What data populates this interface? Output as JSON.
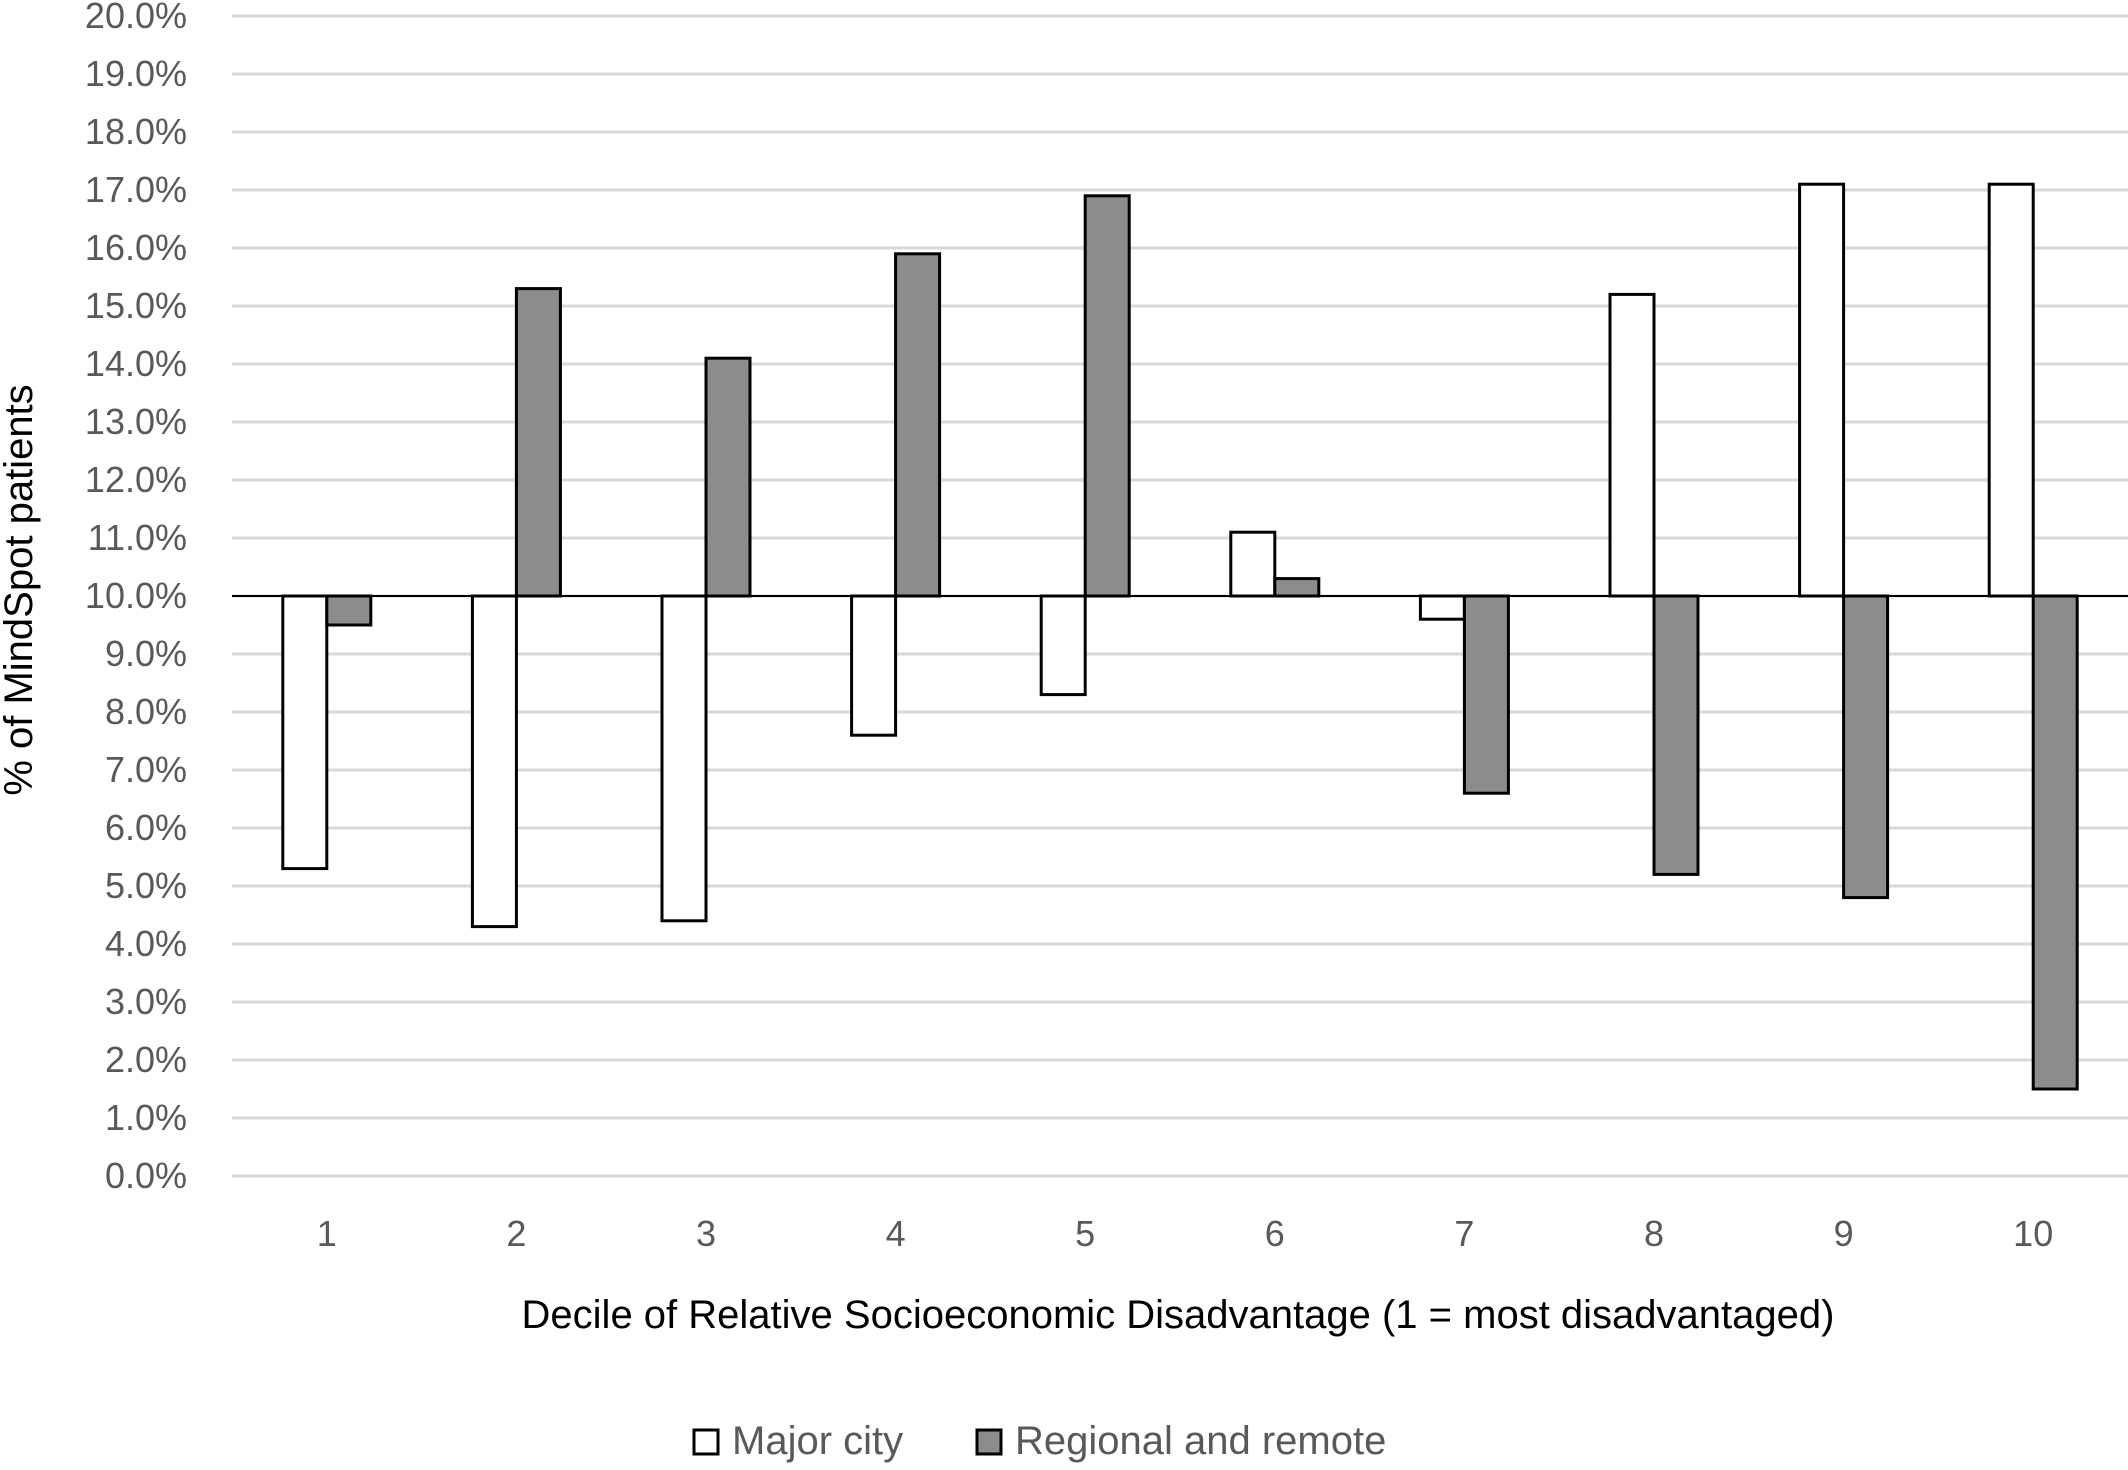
{
  "chart_data": {
    "type": "bar",
    "baseline": 10.0,
    "ylabel": "% of MindSpot patients",
    "xlabel": "Decile of Relative Socioeconomic Disadvantage (1 = most disadvantaged)",
    "ylim": [
      0,
      20
    ],
    "ytick_step": 1,
    "ytick_format": "percent_1dp",
    "grid": true,
    "legend_position": "bottom",
    "categories": [
      "1",
      "2",
      "3",
      "4",
      "5",
      "6",
      "7",
      "8",
      "9",
      "10"
    ],
    "series": [
      {
        "name": "Major city",
        "color": "#ffffff",
        "values": [
          5.3,
          4.3,
          4.4,
          7.6,
          8.3,
          11.1,
          9.6,
          15.2,
          17.1,
          17.1
        ]
      },
      {
        "name": "Regional and remote",
        "color": "#8c8c8c",
        "values": [
          9.5,
          15.3,
          14.1,
          15.9,
          16.9,
          10.3,
          6.6,
          5.2,
          4.8,
          1.5
        ]
      }
    ],
    "colors": {
      "bar_edge": "#000000",
      "grid": "#d9d9d9",
      "baseline": "#000000",
      "tick_text": "#595959"
    }
  }
}
